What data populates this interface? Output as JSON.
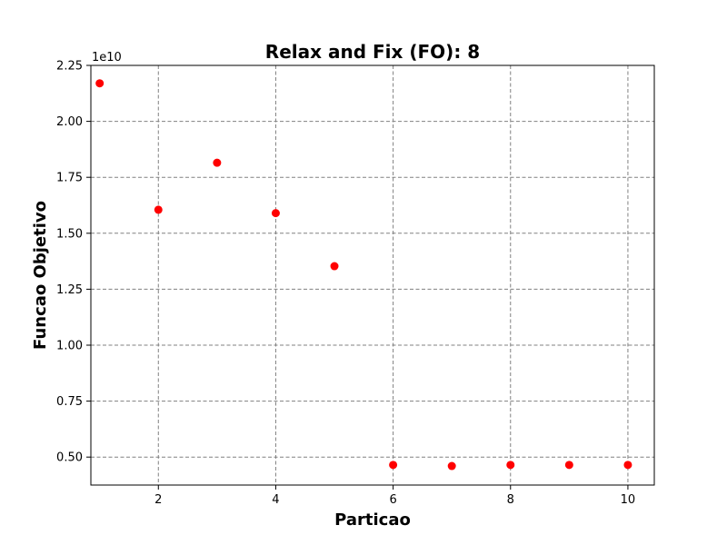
{
  "chart_data": {
    "type": "scatter",
    "title": "Relax and Fix (FO): 8",
    "xlabel": "Particao",
    "ylabel": "Funcao Objetivo",
    "y_offset_label": "1e10",
    "x": [
      1,
      2,
      3,
      4,
      5,
      6,
      7,
      8,
      9,
      10
    ],
    "y": [
      21700000000.0,
      16050000000.0,
      18150000000.0,
      15900000000.0,
      13530000000.0,
      4650000000.0,
      4600000000.0,
      4650000000.0,
      4650000000.0,
      4650000000.0
    ],
    "xlim": [
      0.85,
      10.45
    ],
    "ylim": [
      3750000000.0,
      22500000000.0
    ],
    "xticks": [
      2,
      4,
      6,
      8,
      10
    ],
    "xtick_labels": [
      "2",
      "4",
      "6",
      "8",
      "10"
    ],
    "yticks": [
      0.5,
      0.75,
      1.0,
      1.25,
      1.5,
      1.75,
      2.0,
      2.25
    ],
    "ytick_labels": [
      "0.50",
      "0.75",
      "1.00",
      "1.25",
      "1.50",
      "1.75",
      "2.00",
      "2.25"
    ],
    "ytick_scale": 10000000000.0,
    "grid": true,
    "marker_color": "#ff0000"
  }
}
